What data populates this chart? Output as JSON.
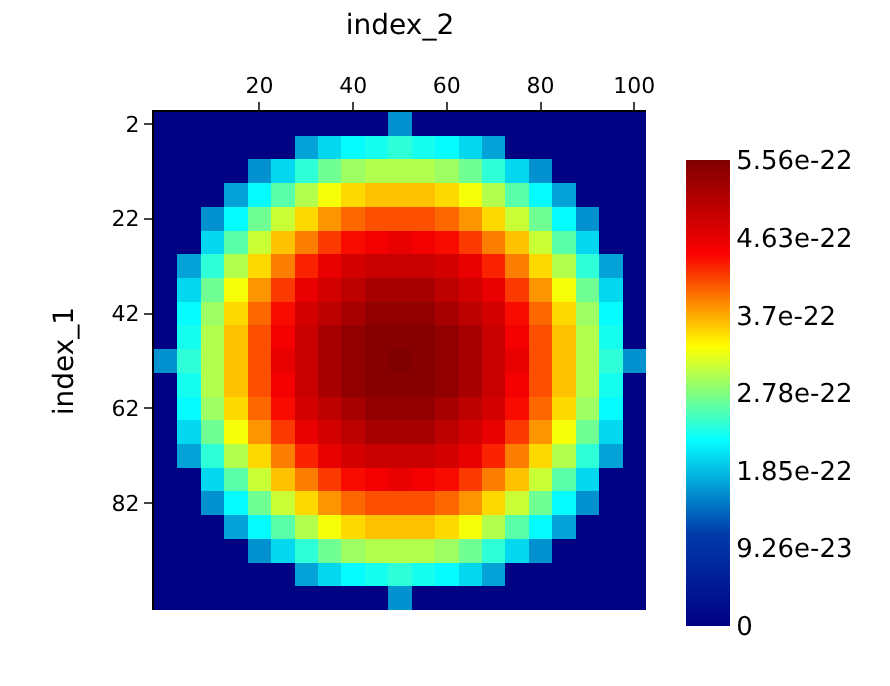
{
  "chart_data": {
    "type": "heatmap",
    "xlabel": "index_2",
    "ylabel": "index_1",
    "categories": [
      null,
      null,
      null,
      null,
      "20",
      null,
      null,
      null,
      "40",
      null,
      null,
      null,
      "60",
      null,
      null,
      null,
      "80",
      null,
      null,
      null,
      "100"
    ],
    "y_categories": [
      "2",
      null,
      null,
      null,
      "22",
      null,
      null,
      null,
      "42",
      null,
      null,
      null,
      "62",
      null,
      null,
      null,
      "82",
      null,
      null,
      null,
      null
    ],
    "cells": [
      [
        0,
        0,
        0,
        0,
        0,
        0,
        0,
        0,
        0,
        0,
        1.6e-22,
        0,
        0,
        0,
        0,
        0,
        0,
        0,
        0,
        0,
        0
      ],
      [
        0,
        0,
        0,
        0,
        0,
        0,
        1.7e-22,
        2e-22,
        2.2e-22,
        2.3e-22,
        2.4e-22,
        2.3e-22,
        2.2e-22,
        2e-22,
        1.7e-22,
        0,
        0,
        0,
        0,
        0,
        0
      ],
      [
        0,
        0,
        0,
        0,
        1.6e-22,
        2e-22,
        2.4e-22,
        2.7e-22,
        2.9e-22,
        3e-22,
        3e-22,
        3e-22,
        2.9e-22,
        2.7e-22,
        2.4e-22,
        2e-22,
        1.6e-22,
        0,
        0,
        0,
        0
      ],
      [
        0,
        0,
        0,
        1.7e-22,
        2.2e-22,
        2.6e-22,
        3e-22,
        3.3e-22,
        3.5e-22,
        3.6e-22,
        3.6e-22,
        3.6e-22,
        3.5e-22,
        3.3e-22,
        3e-22,
        2.6e-22,
        2.2e-22,
        1.7e-22,
        0,
        0,
        0
      ],
      [
        0,
        0,
        1.6e-22,
        2.2e-22,
        2.7e-22,
        3.1e-22,
        3.5e-22,
        3.8e-22,
        4e-22,
        4.1e-22,
        4.1e-22,
        4.1e-22,
        4e-22,
        3.8e-22,
        3.5e-22,
        3.1e-22,
        2.7e-22,
        2.2e-22,
        1.6e-22,
        0,
        0
      ],
      [
        0,
        0,
        2e-22,
        2.6e-22,
        3.1e-22,
        3.6e-22,
        3.9e-22,
        4.2e-22,
        4.4e-22,
        4.5e-22,
        4.6e-22,
        4.5e-22,
        4.4e-22,
        4.2e-22,
        3.9e-22,
        3.6e-22,
        3.1e-22,
        2.6e-22,
        2e-22,
        0,
        0
      ],
      [
        0,
        1.7e-22,
        2.4e-22,
        3e-22,
        3.5e-22,
        3.9e-22,
        4.3e-22,
        4.6e-22,
        4.8e-22,
        4.9e-22,
        4.9e-22,
        4.9e-22,
        4.8e-22,
        4.6e-22,
        4.3e-22,
        3.9e-22,
        3.5e-22,
        3e-22,
        2.4e-22,
        1.7e-22,
        0
      ],
      [
        0,
        2e-22,
        2.7e-22,
        3.3e-22,
        3.8e-22,
        4.2e-22,
        4.6e-22,
        4.8e-22,
        5e-22,
        5.2e-22,
        5.2e-22,
        5.2e-22,
        5e-22,
        4.8e-22,
        4.6e-22,
        4.2e-22,
        3.8e-22,
        3.3e-22,
        2.7e-22,
        2e-22,
        0
      ],
      [
        0,
        2.2e-22,
        2.9e-22,
        3.5e-22,
        4e-22,
        4.4e-22,
        4.8e-22,
        5e-22,
        5.2e-22,
        5.4e-22,
        5.4e-22,
        5.4e-22,
        5.2e-22,
        5e-22,
        4.8e-22,
        4.4e-22,
        4e-22,
        3.5e-22,
        2.9e-22,
        2.2e-22,
        0
      ],
      [
        0,
        2.3e-22,
        3e-22,
        3.6e-22,
        4.1e-22,
        4.5e-22,
        4.9e-22,
        5.2e-22,
        5.4e-22,
        5.5e-22,
        5.5e-22,
        5.5e-22,
        5.4e-22,
        5.2e-22,
        4.9e-22,
        4.5e-22,
        4.1e-22,
        3.6e-22,
        3e-22,
        2.3e-22,
        0
      ],
      [
        1.6e-22,
        2.4e-22,
        3e-22,
        3.6e-22,
        4.1e-22,
        4.6e-22,
        4.9e-22,
        5.2e-22,
        5.4e-22,
        5.5e-22,
        5.56e-22,
        5.5e-22,
        5.4e-22,
        5.2e-22,
        4.9e-22,
        4.6e-22,
        4.1e-22,
        3.6e-22,
        3e-22,
        2.4e-22,
        1.6e-22
      ],
      [
        0,
        2.3e-22,
        3e-22,
        3.6e-22,
        4.1e-22,
        4.5e-22,
        4.9e-22,
        5.2e-22,
        5.4e-22,
        5.5e-22,
        5.5e-22,
        5.5e-22,
        5.4e-22,
        5.2e-22,
        4.9e-22,
        4.5e-22,
        4.1e-22,
        3.6e-22,
        3e-22,
        2.3e-22,
        0
      ],
      [
        0,
        2.2e-22,
        2.9e-22,
        3.5e-22,
        4e-22,
        4.4e-22,
        4.8e-22,
        5e-22,
        5.2e-22,
        5.4e-22,
        5.4e-22,
        5.4e-22,
        5.2e-22,
        5e-22,
        4.8e-22,
        4.4e-22,
        4e-22,
        3.5e-22,
        2.9e-22,
        2.2e-22,
        0
      ],
      [
        0,
        2e-22,
        2.7e-22,
        3.3e-22,
        3.8e-22,
        4.2e-22,
        4.6e-22,
        4.8e-22,
        5e-22,
        5.2e-22,
        5.2e-22,
        5.2e-22,
        5e-22,
        4.8e-22,
        4.6e-22,
        4.2e-22,
        3.8e-22,
        3.3e-22,
        2.7e-22,
        2e-22,
        0
      ],
      [
        0,
        1.7e-22,
        2.4e-22,
        3e-22,
        3.5e-22,
        3.9e-22,
        4.3e-22,
        4.6e-22,
        4.8e-22,
        4.9e-22,
        4.9e-22,
        4.9e-22,
        4.8e-22,
        4.6e-22,
        4.3e-22,
        3.9e-22,
        3.5e-22,
        3e-22,
        2.4e-22,
        1.7e-22,
        0
      ],
      [
        0,
        0,
        2e-22,
        2.6e-22,
        3.1e-22,
        3.6e-22,
        3.9e-22,
        4.2e-22,
        4.4e-22,
        4.5e-22,
        4.6e-22,
        4.5e-22,
        4.4e-22,
        4.2e-22,
        3.9e-22,
        3.6e-22,
        3.1e-22,
        2.6e-22,
        2e-22,
        0,
        0
      ],
      [
        0,
        0,
        1.6e-22,
        2.2e-22,
        2.7e-22,
        3.1e-22,
        3.5e-22,
        3.8e-22,
        4e-22,
        4.1e-22,
        4.1e-22,
        4.1e-22,
        4e-22,
        3.8e-22,
        3.5e-22,
        3.1e-22,
        2.7e-22,
        2.2e-22,
        1.6e-22,
        0,
        0
      ],
      [
        0,
        0,
        0,
        1.7e-22,
        2.2e-22,
        2.6e-22,
        3e-22,
        3.3e-22,
        3.5e-22,
        3.6e-22,
        3.6e-22,
        3.6e-22,
        3.5e-22,
        3.3e-22,
        3e-22,
        2.6e-22,
        2.2e-22,
        1.7e-22,
        0,
        0,
        0
      ],
      [
        0,
        0,
        0,
        0,
        1.6e-22,
        2e-22,
        2.4e-22,
        2.7e-22,
        2.9e-22,
        3e-22,
        3e-22,
        3e-22,
        2.9e-22,
        2.7e-22,
        2.4e-22,
        2e-22,
        1.6e-22,
        0,
        0,
        0,
        0
      ],
      [
        0,
        0,
        0,
        0,
        0,
        0,
        1.7e-22,
        2e-22,
        2.2e-22,
        2.3e-22,
        2.4e-22,
        2.3e-22,
        2.2e-22,
        2e-22,
        1.7e-22,
        0,
        0,
        0,
        0,
        0,
        0
      ],
      [
        0,
        0,
        0,
        0,
        0,
        0,
        0,
        0,
        0,
        0,
        1.6e-22,
        0,
        0,
        0,
        0,
        0,
        0,
        0,
        0,
        0,
        0
      ]
    ],
    "clim": [
      0,
      5.56e-22
    ],
    "cticks": [
      0,
      {
        "value": 9.26e-23,
        "label": "9.26e-23"
      },
      {
        "value": 1.85e-22,
        "label": "1.85e-22"
      },
      {
        "value": 2.78e-22,
        "label": "2.78e-22"
      },
      {
        "value": 3.7e-22,
        "label": "3.7e-22"
      },
      {
        "value": 4.63e-22,
        "label": "4.63e-22"
      },
      {
        "value": 5.56e-22,
        "label": "5.56e-22"
      }
    ]
  }
}
